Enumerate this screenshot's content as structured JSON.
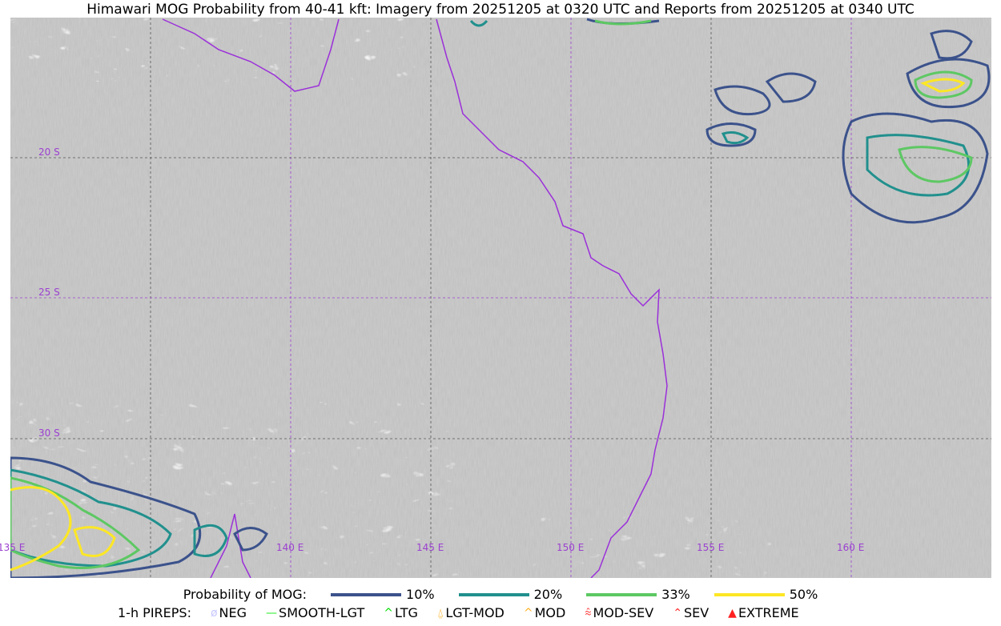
{
  "title": "Himawari MOG Probability from 40-41 kft: Imagery from 20251205 at 0320 UTC and Reports from 20251205 at 0340 UTC",
  "map": {
    "lon_labels": [
      "135 E",
      "140 E",
      "145 E",
      "150 E",
      "155 E",
      "160 E"
    ],
    "lat_labels": [
      "20 S",
      "25 S",
      "30 S"
    ],
    "grid_color": "#9b40d0",
    "coastline_color": "#9b30d9"
  },
  "legend": {
    "prob_title": "Probability of MOG:",
    "prob_levels": [
      {
        "label": "10%",
        "color": "#3b528b"
      },
      {
        "label": "20%",
        "color": "#21908d"
      },
      {
        "label": "33%",
        "color": "#5dc863"
      },
      {
        "label": "50%",
        "color": "#fde725"
      }
    ],
    "pirep_title": "1-h PIREPS:",
    "pireps": [
      {
        "label": "NEG",
        "color": "#c8c8ff",
        "icon": "neg-circle-slash-icon"
      },
      {
        "label": "SMOOTH-LGT",
        "color": "#22ee22",
        "icon": "line-icon"
      },
      {
        "label": "LTG",
        "color": "#00dd00",
        "icon": "caret-icon"
      },
      {
        "label": "LGT-MOD",
        "color": "#ffb020",
        "icon": "caret-bar-icon"
      },
      {
        "label": "MOD",
        "color": "#ffb020",
        "icon": "caret-icon"
      },
      {
        "label": "MOD-SEV",
        "color": "#ff3030",
        "icon": "double-caret-bar-icon"
      },
      {
        "label": "SEV",
        "color": "#ff3030",
        "icon": "double-caret-icon"
      },
      {
        "label": "EXTREME",
        "color": "#ff2020",
        "icon": "filled-triangle-icon"
      }
    ]
  }
}
